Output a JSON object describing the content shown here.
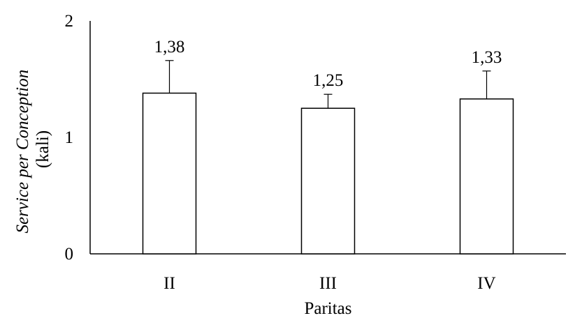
{
  "chart_data": {
    "type": "bar",
    "categories": [
      "II",
      "III",
      "IV"
    ],
    "values": [
      1.38,
      1.25,
      1.33
    ],
    "error_upper": [
      1.66,
      1.37,
      1.57
    ],
    "data_labels": [
      "1,38",
      "1,25",
      "1,33"
    ],
    "title": "",
    "xlabel": "Paritas",
    "ylabel_line1": "Service per Conception",
    "ylabel_line2": "(kali)",
    "ylim": [
      0,
      2
    ],
    "yticks": [
      0,
      1,
      2
    ],
    "ytick_labels": [
      "0",
      "1",
      "2"
    ],
    "grid": false,
    "legend": "none",
    "colors": {
      "bar_fill": "#ffffff",
      "bar_stroke": "#000000",
      "axis": "#000000",
      "error_bar": "#000000"
    }
  }
}
